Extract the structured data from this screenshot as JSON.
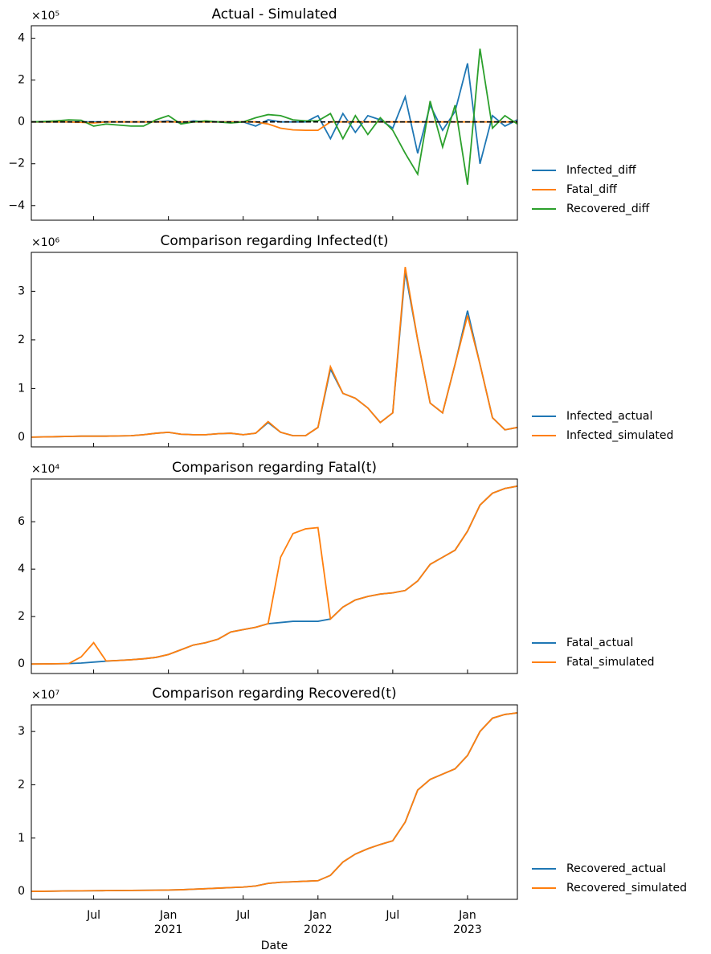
{
  "chart_data": [
    {
      "type": "line",
      "title": "Actual - Simulated",
      "y_offset_label": "×10⁵",
      "x": [
        "2020-02",
        "2020-03",
        "2020-04",
        "2020-05",
        "2020-06",
        "2020-07",
        "2020-08",
        "2020-09",
        "2020-10",
        "2020-11",
        "2020-12",
        "2021-01",
        "2021-02",
        "2021-03",
        "2021-04",
        "2021-05",
        "2021-06",
        "2021-07",
        "2021-08",
        "2021-09",
        "2021-10",
        "2021-11",
        "2021-12",
        "2022-01",
        "2022-02",
        "2022-03",
        "2022-04",
        "2022-05",
        "2022-06",
        "2022-07",
        "2022-08",
        "2022-09",
        "2022-10",
        "2022-11",
        "2022-12",
        "2023-01",
        "2023-02",
        "2023-03",
        "2023-04",
        "2023-05"
      ],
      "xlim": [
        "2020-02",
        "2023-05"
      ],
      "xticks": [
        "2020-07",
        "2021-01",
        "2021-07",
        "2022-01",
        "2022-07",
        "2023-01"
      ],
      "ylim": [
        -4.7,
        4.6
      ],
      "yticks": [
        {
          "value": -4,
          "label": "−4"
        },
        {
          "value": -2,
          "label": "−2"
        },
        0,
        2,
        4
      ],
      "reference_line": 0,
      "legend": "outside-lower-right",
      "series": [
        {
          "name": "Infected_diff",
          "color": "#1f77b4",
          "values": [
            0,
            0,
            0,
            0,
            0,
            0,
            0,
            0,
            0,
            0,
            0,
            0.05,
            -0.05,
            0.05,
            0,
            0,
            0,
            0,
            -0.2,
            0.1,
            0,
            0,
            0,
            0.3,
            -0.8,
            0.4,
            -0.5,
            0.3,
            0.1,
            -0.3,
            1.2,
            -1.5,
            0.8,
            -0.4,
            0.5,
            2.8,
            -2.0,
            0.3,
            -0.2,
            0.1
          ]
        },
        {
          "name": "Fatal_diff",
          "color": "#ff7f0e",
          "values": [
            0,
            0,
            0,
            0,
            -0.02,
            -0.05,
            0,
            0,
            0,
            0,
            0,
            0,
            0,
            0,
            0,
            0,
            0,
            0,
            0,
            -0.1,
            -0.3,
            -0.38,
            -0.4,
            -0.4,
            0,
            0,
            0,
            0,
            0,
            0,
            0,
            0,
            0,
            0,
            0,
            0,
            0,
            0,
            0,
            0
          ]
        },
        {
          "name": "Recovered_diff",
          "color": "#2ca02c",
          "values": [
            0,
            0.02,
            0.05,
            0.1,
            0.08,
            -0.2,
            -0.1,
            -0.15,
            -0.2,
            -0.2,
            0.1,
            0.3,
            -0.1,
            0,
            0.05,
            0,
            -0.05,
            0,
            0.2,
            0.35,
            0.3,
            0.1,
            0.05,
            0.05,
            0.4,
            -0.8,
            0.3,
            -0.6,
            0.2,
            -0.4,
            -1.5,
            -2.5,
            1.0,
            -1.2,
            0.8,
            -3.0,
            3.5,
            -0.3,
            0.3,
            -0.1
          ]
        }
      ]
    },
    {
      "type": "line",
      "title": "Comparison regarding Infected(t)",
      "y_offset_label": "×10⁶",
      "x": [
        "2020-02",
        "2020-03",
        "2020-04",
        "2020-05",
        "2020-06",
        "2020-07",
        "2020-08",
        "2020-09",
        "2020-10",
        "2020-11",
        "2020-12",
        "2021-01",
        "2021-02",
        "2021-03",
        "2021-04",
        "2021-05",
        "2021-06",
        "2021-07",
        "2021-08",
        "2021-09",
        "2021-10",
        "2021-11",
        "2021-12",
        "2022-01",
        "2022-02",
        "2022-03",
        "2022-04",
        "2022-05",
        "2022-06",
        "2022-07",
        "2022-08",
        "2022-09",
        "2022-10",
        "2022-11",
        "2022-12",
        "2023-01",
        "2023-02",
        "2023-03",
        "2023-04",
        "2023-05"
      ],
      "xlim": [
        "2020-02",
        "2023-05"
      ],
      "xticks": [
        "2020-07",
        "2021-01",
        "2021-07",
        "2022-01",
        "2022-07",
        "2023-01"
      ],
      "ylim": [
        -0.2,
        3.8
      ],
      "yticks": [
        0,
        1,
        2,
        3
      ],
      "legend": "outside-lower-right",
      "series": [
        {
          "name": "Infected_actual",
          "color": "#1f77b4",
          "values": [
            0,
            0.005,
            0.01,
            0.015,
            0.02,
            0.02,
            0.02,
            0.025,
            0.03,
            0.05,
            0.08,
            0.1,
            0.06,
            0.05,
            0.05,
            0.07,
            0.08,
            0.05,
            0.08,
            0.3,
            0.1,
            0.03,
            0.03,
            0.2,
            1.4,
            0.9,
            0.8,
            0.6,
            0.3,
            0.5,
            3.4,
            2.0,
            0.7,
            0.5,
            1.5,
            2.6,
            1.5,
            0.4,
            0.15,
            0.2
          ]
        },
        {
          "name": "Infected_simulated",
          "color": "#ff7f0e",
          "values": [
            0,
            0.005,
            0.01,
            0.015,
            0.02,
            0.02,
            0.02,
            0.025,
            0.03,
            0.05,
            0.08,
            0.1,
            0.06,
            0.05,
            0.05,
            0.07,
            0.08,
            0.05,
            0.08,
            0.32,
            0.1,
            0.03,
            0.03,
            0.2,
            1.45,
            0.9,
            0.8,
            0.6,
            0.3,
            0.5,
            3.5,
            2.0,
            0.7,
            0.5,
            1.5,
            2.5,
            1.5,
            0.4,
            0.15,
            0.2
          ]
        }
      ]
    },
    {
      "type": "line",
      "title": "Comparison regarding Fatal(t)",
      "y_offset_label": "×10⁴",
      "x": [
        "2020-02",
        "2020-03",
        "2020-04",
        "2020-05",
        "2020-06",
        "2020-07",
        "2020-08",
        "2020-09",
        "2020-10",
        "2020-11",
        "2020-12",
        "2021-01",
        "2021-02",
        "2021-03",
        "2021-04",
        "2021-05",
        "2021-06",
        "2021-07",
        "2021-08",
        "2021-09",
        "2021-10",
        "2021-11",
        "2021-12",
        "2022-01",
        "2022-02",
        "2022-03",
        "2022-04",
        "2022-05",
        "2022-06",
        "2022-07",
        "2022-08",
        "2022-09",
        "2022-10",
        "2022-11",
        "2022-12",
        "2023-01",
        "2023-02",
        "2023-03",
        "2023-04",
        "2023-05"
      ],
      "xlim": [
        "2020-02",
        "2023-05"
      ],
      "xticks": [
        "2020-07",
        "2021-01",
        "2021-07",
        "2022-01",
        "2022-07",
        "2023-01"
      ],
      "ylim": [
        -0.4,
        7.8
      ],
      "yticks": [
        0,
        2,
        4,
        6
      ],
      "legend": "outside-lower-right",
      "series": [
        {
          "name": "Fatal_actual",
          "color": "#1f77b4",
          "values": [
            0,
            0.005,
            0.01,
            0.02,
            0.04,
            0.08,
            0.12,
            0.15,
            0.18,
            0.22,
            0.28,
            0.4,
            0.6,
            0.8,
            0.9,
            1.05,
            1.35,
            1.45,
            1.55,
            1.7,
            1.75,
            1.8,
            1.8,
            1.8,
            1.9,
            2.4,
            2.7,
            2.85,
            2.95,
            3.0,
            3.1,
            3.5,
            4.2,
            4.5,
            4.8,
            5.6,
            6.7,
            7.2,
            7.4,
            7.5
          ]
        },
        {
          "name": "Fatal_simulated",
          "color": "#ff7f0e",
          "values": [
            0,
            0.005,
            0.01,
            0.02,
            0.3,
            0.9,
            0.13,
            0.15,
            0.18,
            0.22,
            0.28,
            0.4,
            0.6,
            0.8,
            0.9,
            1.05,
            1.35,
            1.45,
            1.55,
            1.7,
            4.5,
            5.5,
            5.7,
            5.75,
            1.9,
            2.4,
            2.7,
            2.85,
            2.95,
            3.0,
            3.1,
            3.5,
            4.2,
            4.5,
            4.8,
            5.6,
            6.7,
            7.2,
            7.4,
            7.5
          ]
        }
      ]
    },
    {
      "type": "line",
      "title": "Comparison regarding Recovered(t)",
      "y_offset_label": "×10⁷",
      "xlabel": "Date",
      "x": [
        "2020-02",
        "2020-03",
        "2020-04",
        "2020-05",
        "2020-06",
        "2020-07",
        "2020-08",
        "2020-09",
        "2020-10",
        "2020-11",
        "2020-12",
        "2021-01",
        "2021-02",
        "2021-03",
        "2021-04",
        "2021-05",
        "2021-06",
        "2021-07",
        "2021-08",
        "2021-09",
        "2021-10",
        "2021-11",
        "2021-12",
        "2022-01",
        "2022-02",
        "2022-03",
        "2022-04",
        "2022-05",
        "2022-06",
        "2022-07",
        "2022-08",
        "2022-09",
        "2022-10",
        "2022-11",
        "2022-12",
        "2023-01",
        "2023-02",
        "2023-03",
        "2023-04",
        "2023-05"
      ],
      "xlim": [
        "2020-02",
        "2023-05"
      ],
      "xticks": [
        {
          "value": "2020-07",
          "label": [
            "Jul"
          ]
        },
        {
          "value": "2021-01",
          "label": [
            "Jan",
            "2021"
          ]
        },
        {
          "value": "2021-07",
          "label": [
            "Jul"
          ]
        },
        {
          "value": "2022-01",
          "label": [
            "Jan",
            "2022"
          ]
        },
        {
          "value": "2022-07",
          "label": [
            "Jul"
          ]
        },
        {
          "value": "2023-01",
          "label": [
            "Jan",
            "2023"
          ]
        }
      ],
      "ylim": [
        -0.15,
        3.5
      ],
      "yticks": [
        0,
        1,
        2,
        3
      ],
      "legend": "outside-lower-right",
      "series": [
        {
          "name": "Recovered_actual",
          "color": "#1f77b4",
          "values": [
            0,
            0.002,
            0.005,
            0.008,
            0.01,
            0.012,
            0.014,
            0.016,
            0.018,
            0.02,
            0.022,
            0.025,
            0.03,
            0.04,
            0.05,
            0.06,
            0.07,
            0.08,
            0.1,
            0.15,
            0.17,
            0.18,
            0.19,
            0.2,
            0.3,
            0.55,
            0.7,
            0.8,
            0.88,
            0.95,
            1.3,
            1.9,
            2.1,
            2.2,
            2.3,
            2.55,
            3.0,
            3.25,
            3.32,
            3.35
          ]
        },
        {
          "name": "Recovered_simulated",
          "color": "#ff7f0e",
          "values": [
            0,
            0.002,
            0.005,
            0.008,
            0.01,
            0.012,
            0.014,
            0.016,
            0.018,
            0.02,
            0.022,
            0.025,
            0.03,
            0.04,
            0.05,
            0.06,
            0.07,
            0.08,
            0.1,
            0.15,
            0.17,
            0.18,
            0.19,
            0.2,
            0.3,
            0.55,
            0.7,
            0.8,
            0.88,
            0.95,
            1.3,
            1.9,
            2.1,
            2.2,
            2.3,
            2.55,
            3.0,
            3.25,
            3.32,
            3.35
          ]
        }
      ]
    }
  ]
}
